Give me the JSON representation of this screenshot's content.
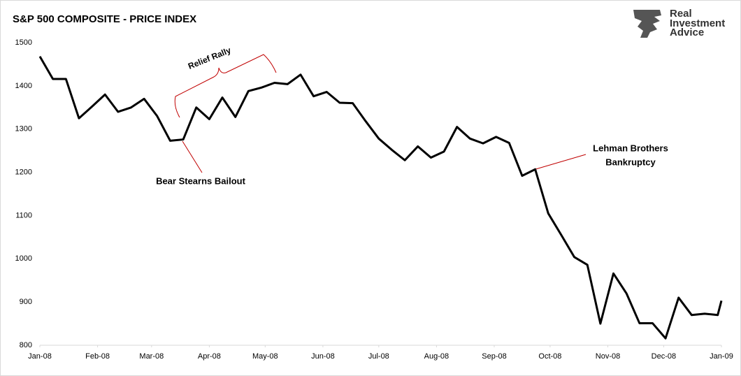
{
  "chart_data": {
    "type": "line",
    "title": "S&P 500 COMPOSITE - PRICE INDEX",
    "x": [
      0,
      7,
      14,
      21,
      28,
      35,
      42,
      49,
      56,
      63,
      70,
      77,
      84,
      91,
      98,
      105,
      112,
      119,
      126,
      133,
      140,
      147,
      154,
      161,
      168,
      175,
      182,
      189,
      196,
      203,
      210,
      217,
      224,
      231,
      238,
      245,
      252,
      259,
      266,
      273,
      280,
      287,
      294,
      301,
      308,
      315,
      322,
      329,
      336,
      343,
      350,
      357,
      364,
      366
    ],
    "series": [
      {
        "color": "#000000",
        "values": [
          1468,
          1416,
          1416,
          1325,
          1352,
          1380,
          1340,
          1350,
          1370,
          1330,
          1273,
          1276,
          1350,
          1323,
          1373,
          1328,
          1388,
          1396,
          1407,
          1404,
          1426,
          1376,
          1386,
          1361,
          1360,
          1318,
          1278,
          1252,
          1228,
          1260,
          1234,
          1248,
          1305,
          1278,
          1267,
          1282,
          1268,
          1192,
          1207,
          1105,
          1055,
          1004,
          986,
          850,
          966,
          920,
          851,
          851,
          816,
          910,
          870,
          873,
          870,
          903
        ]
      }
    ],
    "xlim": [
      0,
      366
    ],
    "xticks": [
      {
        "value": 0,
        "label": "Jan-08"
      },
      {
        "value": 31,
        "label": "Feb-08"
      },
      {
        "value": 60,
        "label": "Mar-08"
      },
      {
        "value": 91,
        "label": "Apr-08"
      },
      {
        "value": 121,
        "label": "May-08"
      },
      {
        "value": 152,
        "label": "Jun-08"
      },
      {
        "value": 182,
        "label": "Jul-08"
      },
      {
        "value": 213,
        "label": "Aug-08"
      },
      {
        "value": 244,
        "label": "Sep-08"
      },
      {
        "value": 274,
        "label": "Oct-08"
      },
      {
        "value": 305,
        "label": "Nov-08"
      },
      {
        "value": 335,
        "label": "Dec-08"
      },
      {
        "value": 366,
        "label": "Jan-09"
      }
    ],
    "ylim": [
      800,
      1500
    ],
    "yticks": [
      800,
      900,
      1000,
      1100,
      1200,
      1300,
      1400,
      1500
    ],
    "grid": false,
    "annotations": [
      {
        "lines": [
          "Relief Rally"
        ],
        "color": "#c00000"
      },
      {
        "lines": [
          "Bear Stearns Bailout"
        ],
        "color": "#000000"
      },
      {
        "lines": [
          "Lehman Brothers",
          "Bankruptcy"
        ],
        "color": "#000000"
      }
    ],
    "logo": [
      "Real",
      "Investment",
      "Advice"
    ]
  }
}
